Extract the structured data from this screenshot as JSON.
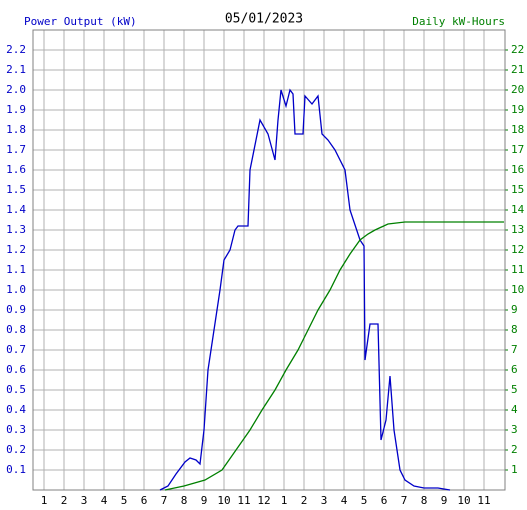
{
  "chart_data": {
    "type": "line",
    "title": "05/01/2023",
    "y_label": "Power Output (kW)",
    "y2_label": "Daily kW-Hours",
    "grid": true,
    "xlim": [
      0.45,
      24.05
    ],
    "xticks": [
      1,
      2,
      3,
      4,
      5,
      6,
      7,
      8,
      9,
      10,
      11,
      12,
      {
        "value": 13,
        "label": "1"
      },
      {
        "value": 14,
        "label": "2"
      },
      {
        "value": 15,
        "label": "3"
      },
      {
        "value": 16,
        "label": "4"
      },
      {
        "value": 17,
        "label": "5"
      },
      {
        "value": 18,
        "label": "6"
      },
      {
        "value": 19,
        "label": "7"
      },
      {
        "value": 20,
        "label": "8"
      },
      {
        "value": 21,
        "label": "9"
      },
      {
        "value": 22,
        "label": "10"
      },
      {
        "value": 23,
        "label": "11"
      }
    ],
    "ylim": [
      0,
      2.3
    ],
    "yticks": [
      0.1,
      0.2,
      0.3,
      0.4,
      0.5,
      0.6,
      0.7,
      0.8,
      0.9,
      {
        "value": 1,
        "label": "1.0"
      },
      1.1,
      1.2,
      1.3,
      1.4,
      1.5,
      1.6,
      1.7,
      1.8,
      1.9,
      {
        "value": 2,
        "label": "2.0"
      },
      2.1,
      2.2
    ],
    "y2lim": [
      0,
      23
    ],
    "y2ticks": [
      1,
      2,
      3,
      4,
      5,
      6,
      7,
      8,
      9,
      10,
      11,
      12,
      13,
      14,
      15,
      16,
      17,
      18,
      19,
      20,
      21,
      22
    ],
    "series": [
      {
        "color": "#0000c8",
        "axis": "y",
        "x": [
          6.8,
          7.2,
          7.6,
          8.05,
          8.3,
          8.6,
          8.8,
          9.0,
          9.2,
          9.5,
          9.8,
          10.0,
          10.3,
          10.55,
          10.7,
          11.2,
          11.3,
          11.6,
          11.8,
          12.2,
          12.55,
          12.7,
          12.85,
          13.1,
          13.3,
          13.45,
          13.55,
          13.95,
          14.05,
          14.4,
          14.7,
          14.9,
          15.2,
          15.55,
          16.05,
          16.3,
          16.8,
          17.0,
          17.05,
          17.3,
          17.7,
          17.85,
          18.1,
          18.3,
          18.5,
          18.8,
          19.05,
          19.5,
          20.0,
          20.7,
          21.3
        ],
        "values": [
          0.0,
          0.02,
          0.08,
          0.14,
          0.16,
          0.15,
          0.13,
          0.3,
          0.6,
          0.8,
          1.0,
          1.15,
          1.2,
          1.3,
          1.32,
          1.32,
          1.6,
          1.75,
          1.85,
          1.78,
          1.65,
          1.85,
          2.0,
          1.92,
          2.0,
          1.98,
          1.78,
          1.78,
          1.97,
          1.93,
          1.97,
          1.78,
          1.75,
          1.7,
          1.6,
          1.4,
          1.25,
          1.22,
          0.65,
          0.83,
          0.83,
          0.25,
          0.35,
          0.57,
          0.3,
          0.1,
          0.05,
          0.02,
          0.01,
          0.01,
          0.0
        ]
      },
      {
        "color": "#008000",
        "axis": "y2",
        "x": [
          7.05,
          8.0,
          9.05,
          9.9,
          10.6,
          11.3,
          11.9,
          12.55,
          13.1,
          13.7,
          14.2,
          14.7,
          15.3,
          15.8,
          16.3,
          16.8,
          17.2,
          17.55,
          18.2,
          19.05,
          20.0,
          22.0,
          24.0
        ],
        "values": [
          0.0,
          0.2,
          0.5,
          1.0,
          2.0,
          3.0,
          4.0,
          5.0,
          6.0,
          7.0,
          8.0,
          9.0,
          10.0,
          11.0,
          11.8,
          12.5,
          12.8,
          13.0,
          13.3,
          13.4,
          13.4,
          13.4,
          13.4
        ]
      }
    ]
  }
}
